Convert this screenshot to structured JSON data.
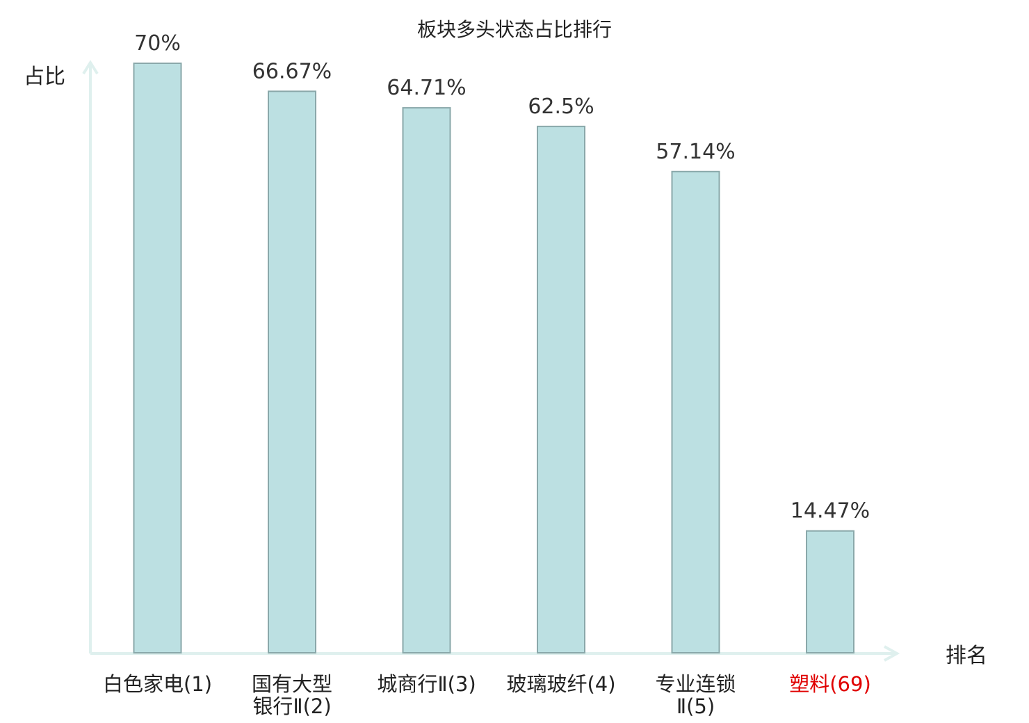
{
  "chart_data": {
    "type": "bar",
    "title": "板块多头状态占比排行",
    "ylabel": "占比",
    "xlabel": "排名",
    "categories": [
      {
        "lines": [
          "白色家电(1)"
        ],
        "highlight": false
      },
      {
        "lines": [
          "国有大型",
          "银行Ⅱ(2)"
        ],
        "highlight": false
      },
      {
        "lines": [
          "城商行Ⅱ(3)"
        ],
        "highlight": false
      },
      {
        "lines": [
          "玻璃玻纤(4)"
        ],
        "highlight": false
      },
      {
        "lines": [
          "专业连锁",
          "Ⅱ(5)"
        ],
        "highlight": false
      },
      {
        "lines": [
          "塑料",
          "(69)"
        ],
        "highlight": true
      }
    ],
    "values": [
      70,
      66.67,
      64.71,
      62.5,
      57.14,
      14.47
    ],
    "value_labels": [
      "70%",
      "66.67%",
      "64.71%",
      "62.5%",
      "57.14%",
      "14.47%"
    ],
    "ylim": [
      0,
      70
    ],
    "grid": false,
    "colors": {
      "bar_fill": "#bce0e2",
      "bar_stroke": "#8aa8aa",
      "axis": "#dff0ee",
      "text": "#222222",
      "highlight_text": "#e00000"
    }
  }
}
